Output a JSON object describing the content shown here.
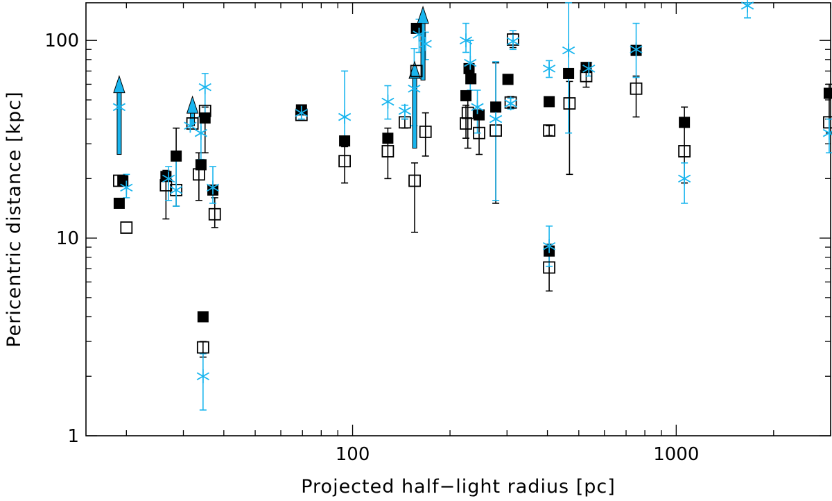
{
  "chart_data": {
    "type": "scatter",
    "title": "",
    "xlabel": "Projected half−light radius [pc]",
    "ylabel": "Pericentric distance [kpc]",
    "xscale": "log",
    "yscale": "log",
    "xlim": [
      15,
      3000
    ],
    "ylim": [
      1,
      155
    ],
    "xticks": [
      {
        "v": 100,
        "label": "100"
      },
      {
        "v": 1000,
        "label": "1000"
      }
    ],
    "yticks": [
      {
        "v": 1,
        "label": "1"
      },
      {
        "v": 10,
        "label": "10"
      },
      {
        "v": 100,
        "label": "100"
      }
    ],
    "grid": false,
    "legend": false,
    "colors": {
      "filled": "#000000",
      "open": "#000000",
      "asterisk": "#19b5ee",
      "arrow": "#19b5ee",
      "errorbar_open": "#000000",
      "errorbar_asterisk": "#19b5ee"
    },
    "series": [
      {
        "marker": "filled-square",
        "points": [
          {
            "x": 19.0,
            "y": 15
          },
          {
            "x": 19.5,
            "y": 19.5
          },
          {
            "x": 26.5,
            "y": 20.5
          },
          {
            "x": 28.5,
            "y": 26
          },
          {
            "x": 34.5,
            "y": 4
          },
          {
            "x": 34.0,
            "y": 23.5
          },
          {
            "x": 35.0,
            "y": 40.5
          },
          {
            "x": 37.0,
            "y": 17.5
          },
          {
            "x": 69.5,
            "y": 44.5
          },
          {
            "x": 94.5,
            "y": 31
          },
          {
            "x": 128.5,
            "y": 32
          },
          {
            "x": 157.5,
            "y": 115
          },
          {
            "x": 224.0,
            "y": 52.5
          },
          {
            "x": 229.0,
            "y": 72
          },
          {
            "x": 232.0,
            "y": 64
          },
          {
            "x": 246.0,
            "y": 42
          },
          {
            "x": 277.0,
            "y": 46
          },
          {
            "x": 302.0,
            "y": 63.5
          },
          {
            "x": 405.0,
            "y": 49
          },
          {
            "x": 405.0,
            "y": 8.6
          },
          {
            "x": 465.0,
            "y": 68
          },
          {
            "x": 527.0,
            "y": 73
          },
          {
            "x": 752.0,
            "y": 89
          },
          {
            "x": 1060.0,
            "y": 38.5
          },
          {
            "x": 2970.0,
            "y": 54
          }
        ]
      },
      {
        "marker": "open-square",
        "points": [
          {
            "x": 19.0,
            "y": 19.5,
            "err": [
              19.5,
              19.5
            ]
          },
          {
            "x": 20.0,
            "y": 11.3,
            "err": [
              11.3,
              11.3
            ]
          },
          {
            "x": 26.5,
            "y": 18.5,
            "err": [
              12.5,
              22
            ]
          },
          {
            "x": 28.5,
            "y": 17.5,
            "err": [
              14.5,
              36
            ]
          },
          {
            "x": 32.0,
            "y": 38,
            "err": [
              38,
              38
            ]
          },
          {
            "x": 34.5,
            "y": 2.8,
            "err": [
              2.5,
              3
            ]
          },
          {
            "x": 33.5,
            "y": 21,
            "err": [
              15.5,
              27
            ]
          },
          {
            "x": 35.0,
            "y": 44,
            "err": [
              27,
              46
            ]
          },
          {
            "x": 37.5,
            "y": 13.2,
            "err": [
              11.3,
              16
            ]
          },
          {
            "x": 69.5,
            "y": 42,
            "err": [
              42,
              42
            ]
          },
          {
            "x": 94.5,
            "y": 24.5,
            "err": [
              19,
              29
            ]
          },
          {
            "x": 128.5,
            "y": 27.5,
            "err": [
              20,
              36
            ]
          },
          {
            "x": 145.0,
            "y": 38.5,
            "err": [
              36,
              40
            ]
          },
          {
            "x": 155.5,
            "y": 19.5,
            "err": [
              10.7,
              24
            ]
          },
          {
            "x": 157.5,
            "y": 70,
            "err": [
              70,
              70
            ]
          },
          {
            "x": 168.0,
            "y": 34.5,
            "err": [
              26,
              43
            ]
          },
          {
            "x": 224.0,
            "y": 38,
            "err": [
              32,
              47
            ]
          },
          {
            "x": 227.0,
            "y": 43,
            "err": [
              28.5,
              52
            ]
          },
          {
            "x": 246.0,
            "y": 34,
            "err": [
              26.5,
              40
            ]
          },
          {
            "x": 277.0,
            "y": 35,
            "err": [
              15,
              77
            ]
          },
          {
            "x": 308.0,
            "y": 48.5,
            "err": [
              46,
              52
            ]
          },
          {
            "x": 313.0,
            "y": 101,
            "err": [
              92,
              108
            ]
          },
          {
            "x": 405.0,
            "y": 35,
            "err": [
              33,
              37
            ]
          },
          {
            "x": 405.0,
            "y": 7.1,
            "err": [
              5.4,
              9.3
            ]
          },
          {
            "x": 468.0,
            "y": 48,
            "err": [
              21,
              62
            ]
          },
          {
            "x": 527.0,
            "y": 66,
            "err": [
              58,
              70
            ]
          },
          {
            "x": 752.0,
            "y": 57,
            "err": [
              41,
              66
            ]
          },
          {
            "x": 1060.0,
            "y": 27.5,
            "err": [
              19,
              46
            ]
          },
          {
            "x": 2970.0,
            "y": 38.5,
            "err": [
              34,
              60
            ]
          }
        ]
      },
      {
        "marker": "asterisk",
        "points": [
          {
            "x": 19.0,
            "y": 46,
            "err": [
              46,
              46
            ]
          },
          {
            "x": 20.0,
            "y": 18,
            "err": [
              16,
              21
            ]
          },
          {
            "x": 27.0,
            "y": 20,
            "err": [
              15.5,
              23
            ]
          },
          {
            "x": 28.5,
            "y": 17.5,
            "err": [
              14.5,
              25
            ]
          },
          {
            "x": 31.5,
            "y": 37,
            "err": [
              37,
              37
            ]
          },
          {
            "x": 34.0,
            "y": 34,
            "err": [
              25,
              41
            ]
          },
          {
            "x": 34.5,
            "y": 2,
            "err": [
              1.35,
              2.6
            ]
          },
          {
            "x": 35.0,
            "y": 58,
            "err": [
              40,
              68
            ]
          },
          {
            "x": 37.0,
            "y": 18,
            "err": [
              15,
              23
            ]
          },
          {
            "x": 69.5,
            "y": 43,
            "err": [
              40,
              46
            ]
          },
          {
            "x": 94.5,
            "y": 41,
            "err": [
              32,
              70
            ]
          },
          {
            "x": 128.5,
            "y": 49,
            "err": [
              40,
              59
            ]
          },
          {
            "x": 145.0,
            "y": 44,
            "err": [
              40,
              47
            ]
          },
          {
            "x": 155.0,
            "y": 57,
            "err": [
              37,
              91
            ]
          },
          {
            "x": 160.5,
            "y": 107,
            "err": [
              87,
              128
            ]
          },
          {
            "x": 168.0,
            "y": 96,
            "err": [
              80,
              110
            ]
          },
          {
            "x": 224.0,
            "y": 100,
            "err": [
              87,
              122
            ]
          },
          {
            "x": 231.0,
            "y": 77,
            "err": [
              56,
              100
            ]
          },
          {
            "x": 243.0,
            "y": 46,
            "err": [
              34,
              56
            ]
          },
          {
            "x": 277.0,
            "y": 40,
            "err": [
              15.5,
              78
            ]
          },
          {
            "x": 308.0,
            "y": 48,
            "err": [
              45,
              51
            ]
          },
          {
            "x": 313.0,
            "y": 99,
            "err": [
              90,
              112
            ]
          },
          {
            "x": 405.0,
            "y": 72,
            "err": [
              65,
              79
            ]
          },
          {
            "x": 405.0,
            "y": 9.1,
            "err": [
              7.2,
              11.5
            ]
          },
          {
            "x": 465.0,
            "y": 89,
            "err": [
              34,
              155
            ]
          },
          {
            "x": 537.0,
            "y": 72,
            "err": [
              66,
              77
            ]
          },
          {
            "x": 752.0,
            "y": 90,
            "err": [
              65,
              122
            ]
          },
          {
            "x": 1060.0,
            "y": 20,
            "err": [
              15,
              24
            ]
          },
          {
            "x": 1660.0,
            "y": 150,
            "err": [
              130,
              155
            ]
          },
          {
            "x": 2970.0,
            "y": 34,
            "err": [
              27,
              40
            ]
          }
        ]
      },
      {
        "marker": "arrow-up",
        "points": [
          {
            "x": 19.0,
            "y": 26.5,
            "to": 66
          },
          {
            "x": 32.0,
            "y": 37,
            "to": 52
          },
          {
            "x": 155.5,
            "y": 28.5,
            "to": 78
          },
          {
            "x": 165.0,
            "y": 63,
            "to": 148
          }
        ]
      }
    ]
  }
}
